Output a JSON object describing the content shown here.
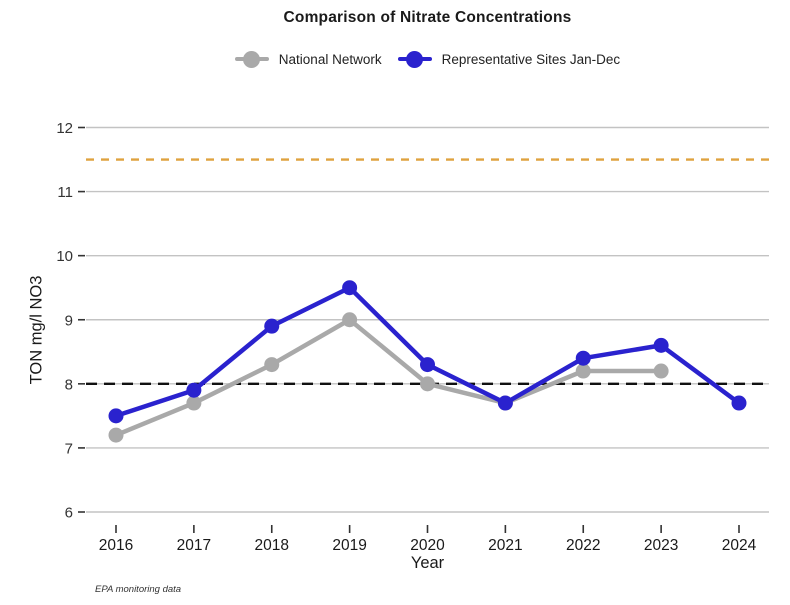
{
  "chart_data": {
    "type": "line",
    "title": "Comparison of Nitrate Concentrations",
    "xlabel": "Year",
    "ylabel": "TON mg/l NO3",
    "caption": "EPA monitoring data",
    "categories": [
      "2016",
      "2017",
      "2018",
      "2019",
      "2020",
      "2021",
      "2022",
      "2023",
      "2024"
    ],
    "series": [
      {
        "name": "National Network",
        "color": "#a9a9a9",
        "values": [
          7.2,
          7.7,
          8.3,
          9.0,
          8.0,
          7.7,
          8.2,
          8.2,
          null
        ]
      },
      {
        "name": "Representative Sites Jan-Dec",
        "color": "#2a22ce",
        "values": [
          7.5,
          7.9,
          8.9,
          9.5,
          8.3,
          7.7,
          8.4,
          8.6,
          7.7
        ]
      }
    ],
    "reference_lines": [
      {
        "value": 8.0,
        "color": "#111111",
        "style": "dashed",
        "dash": "11 7"
      },
      {
        "value": 11.5,
        "color": "#dfa23f",
        "style": "dashed",
        "dash": "8 7"
      }
    ],
    "ylim": [
      6,
      12
    ],
    "yticks": [
      6,
      7,
      8,
      9,
      10,
      11,
      12
    ],
    "grid": "horizontal-only",
    "legend_position": "top-center"
  },
  "colors": {
    "gridline": "#c3c3c3",
    "tick": "#333333",
    "tick_label": "#333333",
    "axis_text": "#1a1a1a"
  }
}
